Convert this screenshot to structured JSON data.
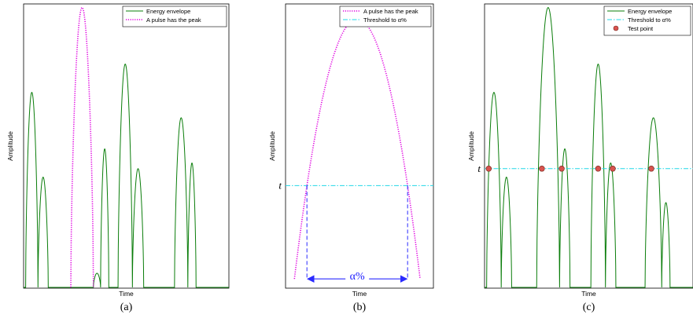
{
  "chart_data": [
    {
      "type": "line",
      "panel_label": "(a)",
      "xlabel": "Time",
      "ylabel": "Amplitude",
      "xlim": [
        0,
        100
      ],
      "ylim": [
        0,
        100
      ],
      "series": [
        {
          "name": "Energy envelope",
          "color": "#0a7d0a",
          "style": "solid",
          "pulses": [
            {
              "start": 1,
              "end": 7,
              "peak": 69
            },
            {
              "start": 7,
              "end": 12,
              "peak": 39
            },
            {
              "start": 34,
              "end": 37.5,
              "peak": 5
            },
            {
              "start": 37.5,
              "end": 41.5,
              "peak": 49
            },
            {
              "start": 46,
              "end": 53,
              "peak": 79
            },
            {
              "start": 53,
              "end": 58.5,
              "peak": 42
            },
            {
              "start": 73.5,
              "end": 80,
              "peak": 60
            },
            {
              "start": 80,
              "end": 84,
              "peak": 44
            }
          ]
        },
        {
          "name": "A pulse has the peak",
          "color": "#e000e0",
          "style": "dotted",
          "pulses": [
            {
              "start": 23,
              "end": 34,
              "peak": 99
            }
          ]
        }
      ]
    },
    {
      "type": "line",
      "panel_label": "(b)",
      "xlabel": "Time",
      "ylabel": "Amplitude",
      "xlim": [
        0,
        100
      ],
      "ylim": [
        0,
        100
      ],
      "threshold_value_label": "t",
      "threshold": 36,
      "span_label": "α%",
      "series": [
        {
          "name": "A pulse has the peak",
          "color": "#e000e0",
          "style": "dotted",
          "pulses": [
            {
              "start": 6,
              "end": 91,
              "peak": 95
            }
          ],
          "baseline": 3
        },
        {
          "name": "Threshold to α%",
          "color": "#22d8e8",
          "style": "dashdot",
          "value": 36
        }
      ]
    },
    {
      "type": "line",
      "panel_label": "(c)",
      "xlabel": "Time",
      "ylabel": "Amplitude",
      "xlim": [
        0,
        100
      ],
      "ylim": [
        0,
        100
      ],
      "threshold_value_label": "t",
      "threshold": 42,
      "series": [
        {
          "name": "Energy envelope",
          "color": "#0a7d0a",
          "style": "solid",
          "pulses": [
            {
              "start": 1,
              "end": 8,
              "peak": 69
            },
            {
              "start": 8,
              "end": 13,
              "peak": 39
            },
            {
              "start": 25,
              "end": 36,
              "peak": 99
            },
            {
              "start": 36,
              "end": 41,
              "peak": 49
            },
            {
              "start": 51,
              "end": 58,
              "peak": 79
            },
            {
              "start": 58,
              "end": 63,
              "peak": 44
            },
            {
              "start": 77,
              "end": 85,
              "peak": 60
            },
            {
              "start": 85,
              "end": 89,
              "peak": 30
            }
          ]
        },
        {
          "name": "Threshold to α%",
          "color": "#22d8e8",
          "style": "dashdot",
          "value": 42
        },
        {
          "name": "Test point",
          "color": "#d9534f",
          "style": "marker",
          "x": [
            2,
            27.5,
            37,
            54.5,
            61.5,
            80
          ]
        }
      ]
    }
  ]
}
